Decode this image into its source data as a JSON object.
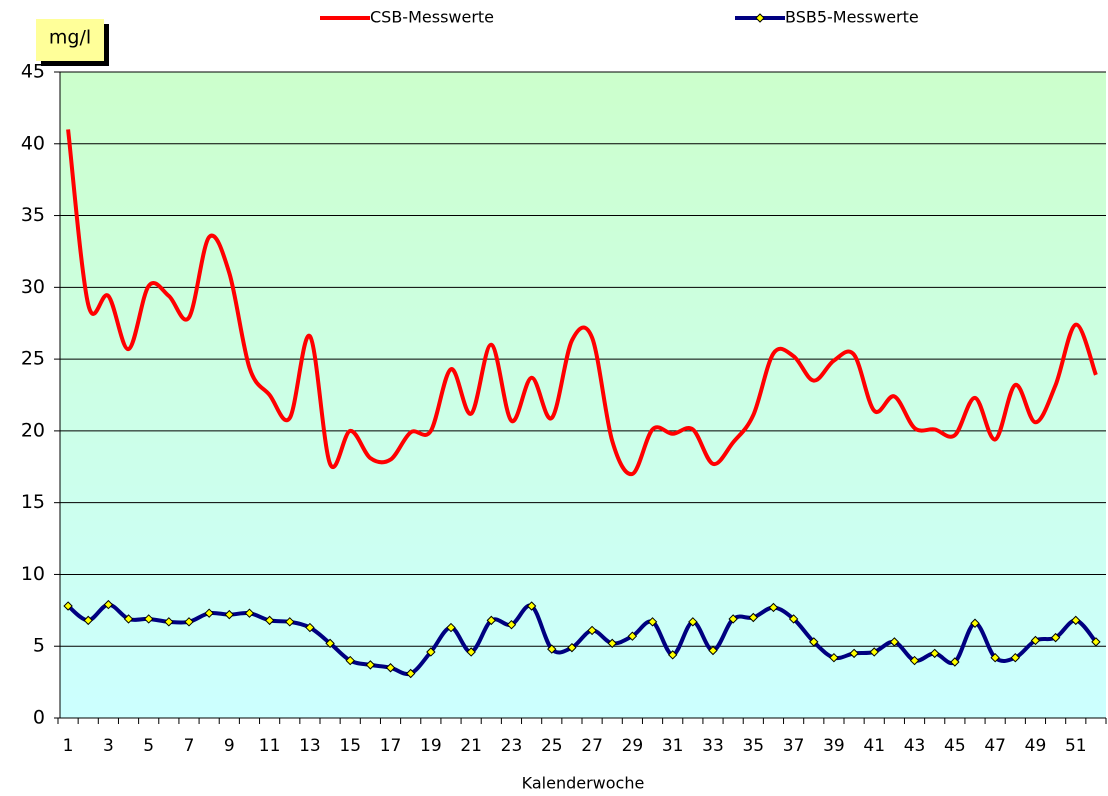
{
  "chart_data": {
    "type": "line",
    "y_label": "mg/l",
    "x_label": "Kalenderwoche",
    "categories": [
      1,
      null,
      3,
      null,
      5,
      null,
      7,
      null,
      9,
      null,
      11,
      null,
      13,
      null,
      15,
      null,
      17,
      null,
      19,
      null,
      21,
      null,
      23,
      null,
      25,
      null,
      27,
      null,
      29,
      null,
      31,
      null,
      33,
      null,
      35,
      null,
      37,
      null,
      39,
      null,
      41,
      null,
      43,
      null,
      45,
      null,
      47,
      null,
      49,
      null,
      51,
      null
    ],
    "series": [
      {
        "name": "CSB-Messwerte",
        "color": "#ff0000",
        "smooth": true,
        "values": [
          41,
          28.8,
          29.4,
          25.7,
          30.1,
          29.4,
          27.9,
          33.5,
          31,
          24.4,
          22.5,
          20.9,
          26.6,
          17.7,
          20,
          18.1,
          18,
          19.9,
          20,
          24.3,
          21.2,
          26,
          20.7,
          23.7,
          20.9,
          26.3,
          26.5,
          19.3,
          17,
          20.1,
          19.8,
          20.1,
          17.7,
          19.2,
          21.1,
          25.4,
          25.2,
          23.5,
          24.9,
          25.3,
          21.4,
          22.4,
          20.2,
          20.1,
          19.7,
          22.3,
          19.4,
          23.2,
          20.6,
          23.2,
          27.4,
          23.9
        ]
      },
      {
        "name": "BSB5-Messwerte",
        "color": "#000080",
        "smooth": true,
        "marker": "diamond",
        "marker_color": "#ffff00",
        "values": [
          7.8,
          6.8,
          7.9,
          6.9,
          6.9,
          6.7,
          6.7,
          7.3,
          7.2,
          7.3,
          6.8,
          6.7,
          6.3,
          5.2,
          4,
          3.7,
          3.5,
          3.1,
          4.6,
          6.3,
          4.6,
          6.8,
          6.5,
          7.8,
          4.8,
          4.9,
          6.1,
          5.2,
          5.7,
          6.7,
          4.4,
          6.7,
          4.7,
          6.9,
          7,
          7.7,
          6.9,
          5.3,
          4.2,
          4.5,
          4.6,
          5.3,
          4,
          4.5,
          3.9,
          6.6,
          4.2,
          4.2,
          5.4,
          5.6,
          6.8,
          5.3
        ]
      }
    ],
    "ylim": [
      0,
      45
    ],
    "yticks": [
      0,
      5,
      10,
      15,
      20,
      25,
      30,
      35,
      40,
      45
    ],
    "grid": true,
    "legend": "top"
  }
}
